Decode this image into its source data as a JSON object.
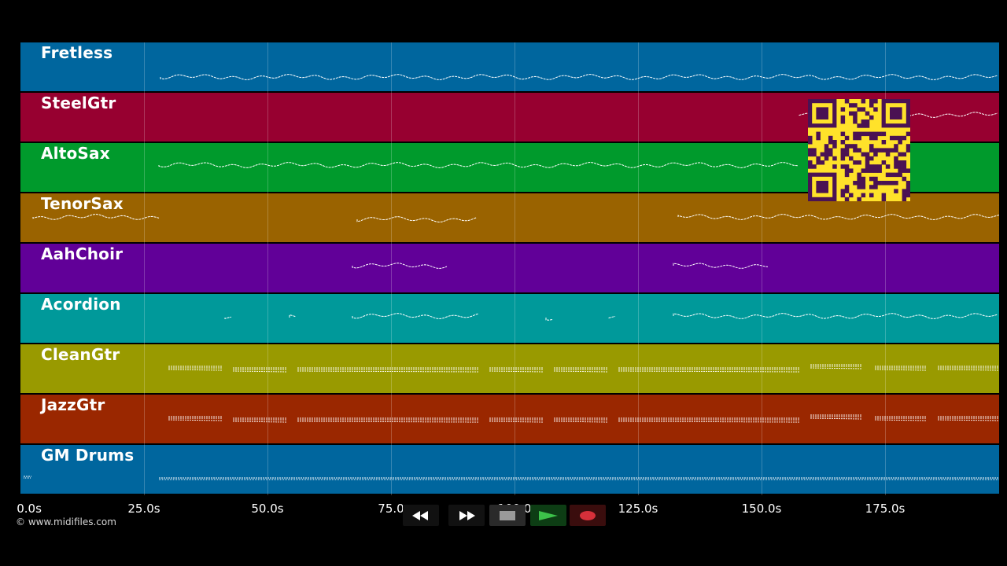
{
  "tracks": [
    {
      "name": "Fretless",
      "color": "#00669e"
    },
    {
      "name": "SteelGtr",
      "color": "#970030"
    },
    {
      "name": "AltoSax",
      "color": "#009a2c"
    },
    {
      "name": "TenorSax",
      "color": "#9a6300"
    },
    {
      "name": "AahChoir",
      "color": "#610098"
    },
    {
      "name": "Acordion",
      "color": "#00999a"
    },
    {
      "name": "CleanGtr",
      "color": "#999a00"
    },
    {
      "name": "JazzGtr",
      "color": "#9a2700"
    },
    {
      "name": "GM Drums",
      "color": "#00669e"
    }
  ],
  "timeline": {
    "ticks": [
      "0.0s",
      "25.0s",
      "50.0s",
      "75.0",
      "100.0",
      "125.0s",
      "150.0s",
      "175.0s"
    ]
  },
  "copyright": "© www.midifiles.com",
  "transport": {
    "rewind_icon": "rewind-icon",
    "fastforward_icon": "fast-forward-icon",
    "stop_icon": "stop-icon",
    "play_icon": "play-icon",
    "record_icon": "record-icon"
  },
  "qr_icon": "qr-code-icon"
}
